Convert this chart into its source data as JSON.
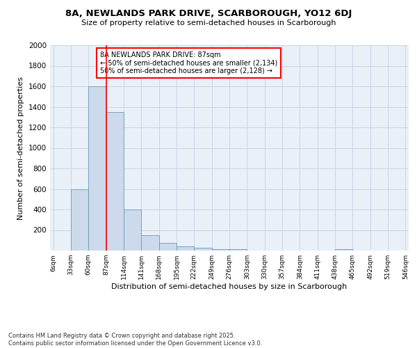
{
  "title1": "8A, NEWLANDS PARK DRIVE, SCARBOROUGH, YO12 6DJ",
  "title2": "Size of property relative to semi-detached houses in Scarborough",
  "xlabel": "Distribution of semi-detached houses by size in Scarborough",
  "ylabel": "Number of semi-detached properties",
  "bin_labels": [
    "6sqm",
    "33sqm",
    "60sqm",
    "87sqm",
    "114sqm",
    "141sqm",
    "168sqm",
    "195sqm",
    "222sqm",
    "249sqm",
    "276sqm",
    "303sqm",
    "330sqm",
    "357sqm",
    "384sqm",
    "411sqm",
    "438sqm",
    "465sqm",
    "492sqm",
    "519sqm",
    "546sqm"
  ],
  "bar_values": [
    0,
    600,
    1600,
    1350,
    400,
    150,
    75,
    40,
    25,
    15,
    15,
    0,
    0,
    0,
    0,
    0,
    15,
    0,
    0,
    0,
    0
  ],
  "bar_color": "#ccdaeb",
  "bar_edgecolor": "#6699bb",
  "legend_text1": "8A NEWLANDS PARK DRIVE: 87sqm",
  "legend_text2": "← 50% of semi-detached houses are smaller (2,134)",
  "legend_text3": "50% of semi-detached houses are larger (2,128) →",
  "ylim": [
    0,
    2000
  ],
  "yticks": [
    0,
    200,
    400,
    600,
    800,
    1000,
    1200,
    1400,
    1600,
    1800,
    2000
  ],
  "footnote1": "Contains HM Land Registry data © Crown copyright and database right 2025.",
  "footnote2": "Contains public sector information licensed under the Open Government Licence v3.0.",
  "background_color": "#ffffff",
  "axes_bg_color": "#eaf0f8",
  "grid_color": "#c8d4e4"
}
